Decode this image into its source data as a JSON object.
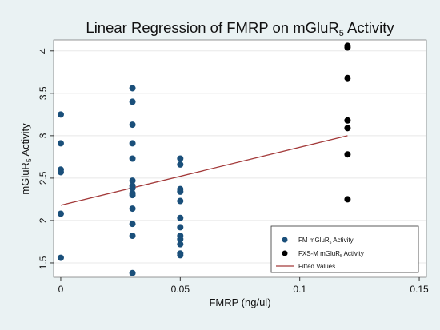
{
  "chart_data": {
    "type": "scatter",
    "title": "Linear Regression of FMRP on mGluR5 Activity",
    "title_parts": {
      "before": "Linear Regression of FMRP on mGluR",
      "sub": "5",
      "after": " Activity"
    },
    "xlabel": "FMRP (ng/ul)",
    "ylabel": "mGluR5 Activity",
    "ylabel_parts": {
      "before": "mGluR",
      "sub": "5",
      "after": " Activity"
    },
    "xlim": [
      -0.003,
      0.153
    ],
    "ylim": [
      1.33,
      4.13
    ],
    "xticks": [
      {
        "value": 0,
        "label": "0"
      },
      {
        "value": 0.05,
        "label": "0.05"
      },
      {
        "value": 0.1,
        "label": "0.1"
      },
      {
        "value": 0.15,
        "label": "0.15"
      }
    ],
    "yticks": [
      {
        "value": 1.5,
        "label": "1.5"
      },
      {
        "value": 2,
        "label": "2"
      },
      {
        "value": 2.5,
        "label": "2.5"
      },
      {
        "value": 3,
        "label": "3"
      },
      {
        "value": 3.5,
        "label": "3.5"
      },
      {
        "value": 4,
        "label": "4"
      }
    ],
    "grid": true,
    "legend_position": "bottom-right",
    "series": [
      {
        "name": "FM mGluR5 Activity",
        "legend_parts": {
          "before": "FM mGluR",
          "sub": "5",
          "after": " Activity"
        },
        "kind": "points",
        "color": "#1a4f7a",
        "points": [
          [
            0,
            3.25
          ],
          [
            0,
            2.91
          ],
          [
            0,
            2.6
          ],
          [
            0,
            2.57
          ],
          [
            0,
            2.08
          ],
          [
            0,
            1.56
          ],
          [
            0.03,
            3.56
          ],
          [
            0.03,
            3.4
          ],
          [
            0.03,
            3.13
          ],
          [
            0.03,
            2.91
          ],
          [
            0.03,
            2.73
          ],
          [
            0.03,
            2.47
          ],
          [
            0.03,
            2.41
          ],
          [
            0.03,
            2.38
          ],
          [
            0.03,
            2.32
          ],
          [
            0.03,
            2.3
          ],
          [
            0.03,
            2.14
          ],
          [
            0.03,
            1.96
          ],
          [
            0.03,
            1.82
          ],
          [
            0.03,
            1.38
          ],
          [
            0.05,
            2.73
          ],
          [
            0.05,
            2.66
          ],
          [
            0.05,
            2.37
          ],
          [
            0.05,
            2.34
          ],
          [
            0.05,
            2.23
          ],
          [
            0.05,
            2.03
          ],
          [
            0.05,
            1.92
          ],
          [
            0.05,
            1.82
          ],
          [
            0.05,
            1.78
          ],
          [
            0.05,
            1.72
          ],
          [
            0.05,
            1.61
          ],
          [
            0.05,
            1.59
          ]
        ]
      },
      {
        "name": "FXS-M mGluR5 Activity",
        "legend_parts": {
          "before": "FXS-M mGluR",
          "sub": "5",
          "after": " Activity"
        },
        "kind": "points",
        "color": "#000000",
        "points": [
          [
            0.12,
            4.06
          ],
          [
            0.12,
            4.04
          ],
          [
            0.12,
            3.68
          ],
          [
            0.12,
            3.18
          ],
          [
            0.12,
            3.09
          ],
          [
            0.12,
            2.78
          ],
          [
            0.12,
            2.25
          ]
        ]
      },
      {
        "name": "Fitted Values",
        "legend_parts": {
          "before": "Fitted Values",
          "sub": "",
          "after": ""
        },
        "kind": "line",
        "color": "#a33a3a",
        "points": [
          [
            0,
            2.18
          ],
          [
            0.12,
            3.0
          ]
        ]
      }
    ]
  }
}
